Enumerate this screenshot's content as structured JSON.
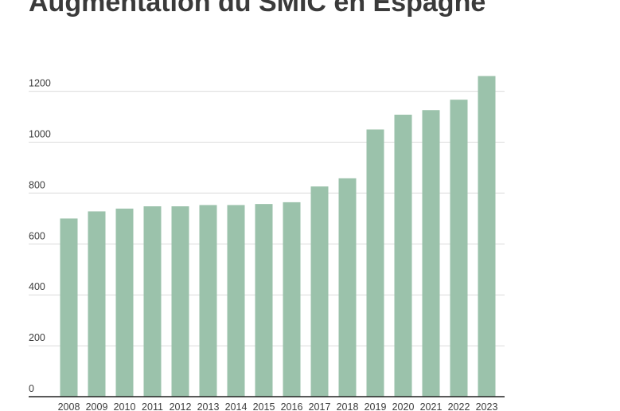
{
  "title": "Augmentation du SMIC en Espagne",
  "colors": {
    "bar": "#9bc2ab",
    "grid": "#dcdcdc",
    "axis": "#222222",
    "text": "#3d3d3d"
  },
  "chart_data": {
    "type": "bar",
    "title": "Augmentation du SMIC en Espagne",
    "xlabel": "",
    "ylabel": "",
    "categories": [
      "2008",
      "2009",
      "2010",
      "2011",
      "2012",
      "2013",
      "2014",
      "2015",
      "2016",
      "2017",
      "2018",
      "2019",
      "2020",
      "2021",
      "2022",
      "2023"
    ],
    "values": [
      700,
      728,
      739,
      748,
      748,
      753,
      753,
      757,
      764,
      826,
      858,
      1050,
      1108,
      1126,
      1167,
      1260
    ],
    "yticks": [
      0,
      200,
      400,
      600,
      800,
      1000,
      1200
    ],
    "ylim": [
      0,
      1260
    ],
    "grid": true,
    "legend": "none"
  }
}
